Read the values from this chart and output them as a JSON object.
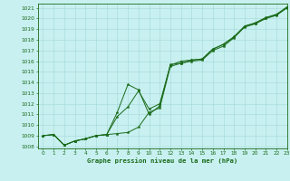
{
  "title": "Graphe pression niveau de la mer (hPa)",
  "bg_color": "#c8f0f0",
  "grid_color": "#aadcdc",
  "line_color": "#1a6b1a",
  "marker_color": "#1a6b1a",
  "xlim": [
    -0.5,
    23
  ],
  "ylim": [
    1007.8,
    1021.4
  ],
  "xticks": [
    0,
    1,
    2,
    3,
    4,
    5,
    6,
    7,
    8,
    9,
    10,
    11,
    12,
    13,
    14,
    15,
    16,
    17,
    18,
    19,
    20,
    21,
    22,
    23
  ],
  "yticks": [
    1008,
    1009,
    1010,
    1011,
    1012,
    1013,
    1014,
    1015,
    1016,
    1017,
    1018,
    1019,
    1020,
    1021
  ],
  "series": [
    [
      1009.0,
      1009.1,
      1008.1,
      1008.5,
      1008.7,
      1009.0,
      1009.1,
      1009.2,
      1009.3,
      1009.8,
      1011.2,
      1011.6,
      1015.5,
      1015.8,
      1016.0,
      1016.1,
      1017.0,
      1017.4,
      1018.2,
      1019.2,
      1019.5,
      1020.0,
      1020.3,
      1021.0
    ],
    [
      1009.0,
      1009.1,
      1008.1,
      1008.5,
      1008.7,
      1009.0,
      1009.1,
      1011.2,
      1013.8,
      1013.3,
      1011.0,
      1011.8,
      1015.7,
      1015.8,
      1016.1,
      1016.2,
      1017.1,
      1017.6,
      1018.3,
      1019.3,
      1019.6,
      1020.1,
      1020.4,
      1021.1
    ],
    [
      1009.0,
      1009.1,
      1008.1,
      1008.5,
      1008.7,
      1009.0,
      1009.1,
      1010.8,
      1011.7,
      1013.2,
      1011.5,
      1012.0,
      1015.6,
      1016.0,
      1016.1,
      1016.2,
      1017.15,
      1017.55,
      1018.25,
      1019.25,
      1019.55,
      1020.05,
      1020.35,
      1021.05
    ]
  ],
  "figsize": [
    3.2,
    2.0
  ],
  "dpi": 100
}
